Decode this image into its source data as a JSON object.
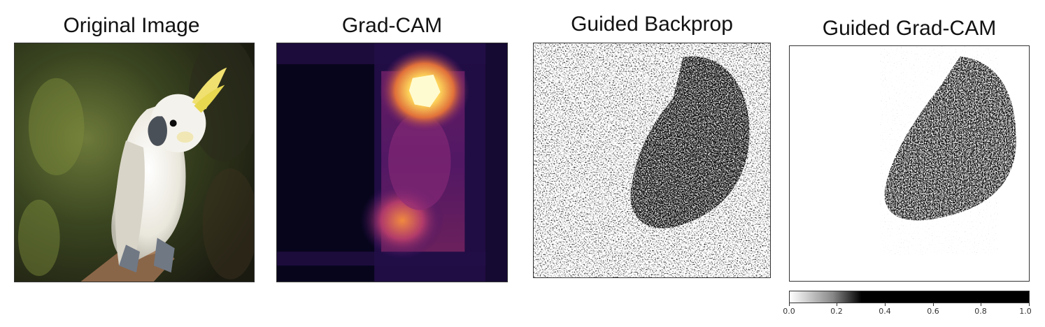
{
  "panels": [
    {
      "title": "Original Image",
      "content": "cockatoo-photo"
    },
    {
      "title": "Grad-CAM",
      "content": "heatmap"
    },
    {
      "title": "Guided Backprop",
      "content": "noise-map"
    },
    {
      "title": "Guided Grad-CAM",
      "content": "masked-noise-map"
    }
  ],
  "colorbar": {
    "ticks": [
      "0.0",
      "0.2",
      "0.4",
      "0.6",
      "0.8",
      "1.0"
    ],
    "values": [
      0.0,
      0.2,
      0.4,
      0.6,
      0.8,
      1.0
    ],
    "range": [
      0.0,
      1.0
    ],
    "colors": {
      "low": "#ffffff",
      "high": "#000000"
    }
  },
  "colors": {
    "heat_dark": "#07051c",
    "heat_purple": "#3a1068",
    "heat_orange": "#e0703a",
    "heat_yellow": "#fffbd0"
  }
}
